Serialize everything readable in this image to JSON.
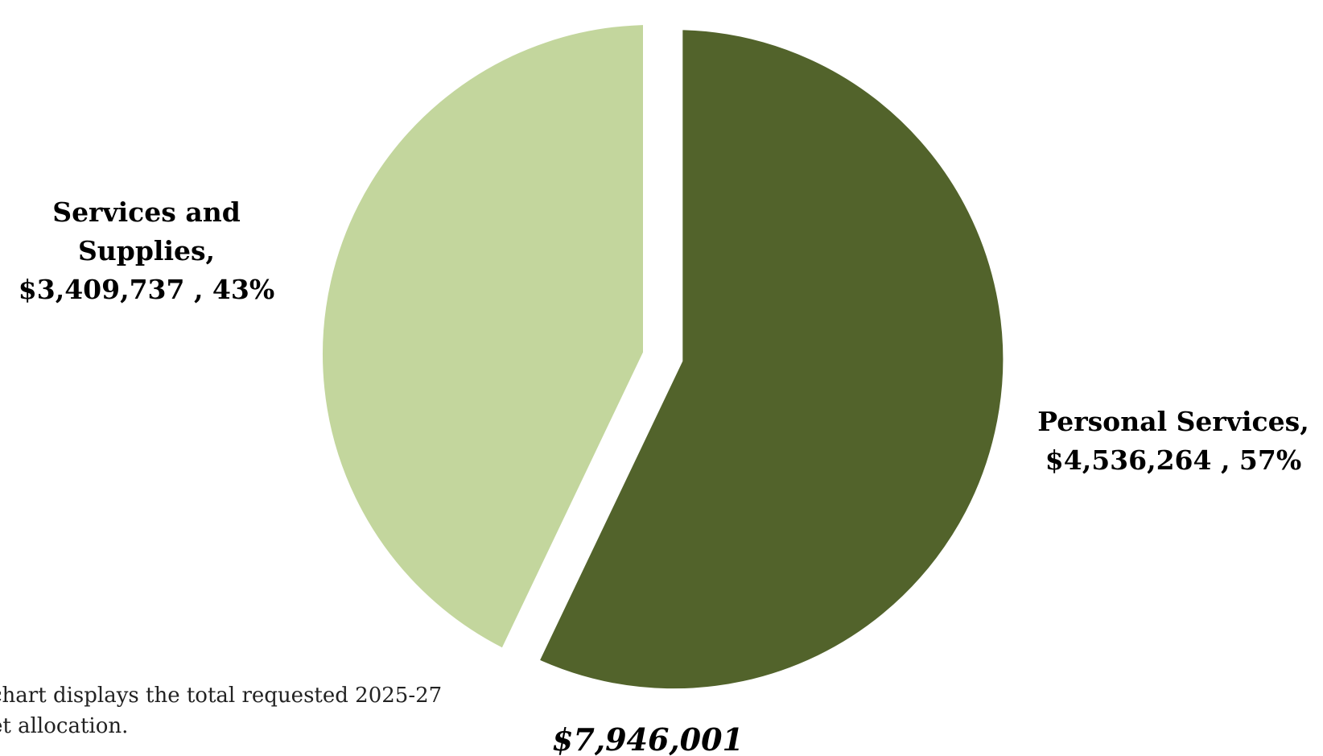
{
  "chart_data": {
    "type": "pie",
    "title": "",
    "total_label": "$7,946,001",
    "slices": [
      {
        "name": "Personal Services",
        "value": 4536264,
        "value_label": "$4,536,264",
        "percent_label": "57%",
        "color": "#52632b",
        "exploded": true
      },
      {
        "name": "Services and Supplies",
        "value": 3409737,
        "value_label": "$3,409,737",
        "percent_label": "43%",
        "color": "#c3d69d",
        "exploded": false
      }
    ],
    "legend": "none"
  },
  "caption": {
    "line1": "chart displays the total requested 2025-27",
    "line2": "et allocation."
  }
}
